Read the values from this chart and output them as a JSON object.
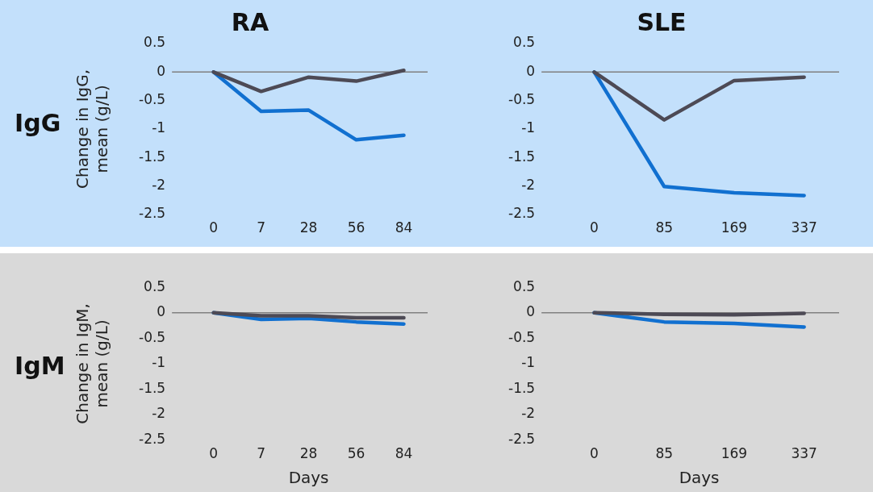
{
  "chart_data": [
    {
      "type": "line",
      "title": "RA",
      "ylabel": "Change in IgG, mean (g/L)",
      "annotations": [
        "IgG"
      ],
      "categories": [
        "0",
        "7",
        "28",
        "56",
        "84"
      ],
      "ylim": [
        -2.5,
        0.5
      ],
      "yticks": [
        -2.5,
        -2,
        -1.5,
        -1,
        -0.5,
        0,
        0.5
      ],
      "grid": false,
      "legend": false,
      "marker": "none",
      "ref_lines": [
        {
          "axis": "y",
          "value": 0,
          "color": "#808080"
        }
      ],
      "series": [
        {
          "color": "#4d4a55",
          "values": [
            0,
            -0.34,
            -0.09,
            -0.16,
            0.03
          ]
        },
        {
          "color": "#1170d0",
          "values": [
            0,
            -0.69,
            -0.67,
            -1.19,
            -1.11
          ]
        }
      ]
    },
    {
      "type": "line",
      "title": "SLE",
      "categories": [
        "0",
        "85",
        "169",
        "337"
      ],
      "ylim": [
        -2.5,
        0.5
      ],
      "yticks": [
        -2.5,
        -2,
        -1.5,
        -1,
        -0.5,
        0,
        0.5
      ],
      "grid": false,
      "legend": false,
      "marker": "none",
      "ref_lines": [
        {
          "axis": "y",
          "value": 0,
          "color": "#808080"
        }
      ],
      "series": [
        {
          "color": "#4d4a55",
          "values": [
            0,
            -0.84,
            -0.15,
            -0.09
          ]
        },
        {
          "color": "#1170d0",
          "values": [
            0,
            -2.01,
            -2.12,
            -2.17
          ]
        }
      ]
    },
    {
      "type": "line",
      "ylabel": "Change in IgM, mean (g/L)",
      "xlabel": "Days",
      "annotations": [
        "IgM"
      ],
      "categories": [
        "0",
        "7",
        "28",
        "56",
        "84"
      ],
      "ylim": [
        -2.5,
        0.5
      ],
      "yticks": [
        -2.5,
        -2,
        -1.5,
        -1,
        -0.5,
        0,
        0.5
      ],
      "grid": false,
      "legend": false,
      "marker": "none",
      "ref_lines": [
        {
          "axis": "y",
          "value": 0,
          "color": "#808080"
        }
      ],
      "series": [
        {
          "color": "#4d4a55",
          "values": [
            0,
            -0.06,
            -0.06,
            -0.1,
            -0.1
          ]
        },
        {
          "color": "#1170d0",
          "values": [
            0,
            -0.13,
            -0.11,
            -0.18,
            -0.22
          ]
        }
      ]
    },
    {
      "type": "line",
      "xlabel": "Days",
      "categories": [
        "0",
        "85",
        "169",
        "337"
      ],
      "ylim": [
        -2.5,
        0.5
      ],
      "yticks": [
        -2.5,
        -2,
        -1.5,
        -1,
        -0.5,
        0,
        0.5
      ],
      "grid": false,
      "legend": false,
      "marker": "none",
      "ref_lines": [
        {
          "axis": "y",
          "value": 0,
          "color": "#808080"
        }
      ],
      "series": [
        {
          "color": "#4d4a55",
          "values": [
            0,
            -0.03,
            -0.04,
            -0.01
          ]
        },
        {
          "color": "#1170d0",
          "values": [
            0,
            -0.18,
            -0.21,
            -0.28
          ]
        }
      ]
    }
  ]
}
